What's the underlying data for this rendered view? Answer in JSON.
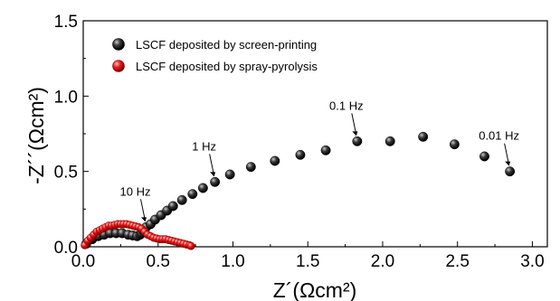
{
  "chart_data": {
    "type": "scatter",
    "xlabel": "Z´(Ωcm²)",
    "ylabel": "-Z´´(Ωcm²)",
    "xlim": [
      0,
      3.1
    ],
    "ylim": [
      0,
      1.5
    ],
    "x_ticks": [
      "0.0",
      "0.5",
      "1.0",
      "1.5",
      "2.0",
      "2.5",
      "3.0"
    ],
    "y_ticks": [
      "0.0",
      "0.5",
      "1.0",
      "1.5"
    ],
    "legend_position": "top-left",
    "grid": false,
    "series": [
      {
        "name": "LSCF deposited by screen-printing",
        "color": "#1a1a1a",
        "marker": "sphere-large",
        "points": [
          [
            0.02,
            0.02
          ],
          [
            0.06,
            0.05
          ],
          [
            0.1,
            0.07
          ],
          [
            0.14,
            0.08
          ],
          [
            0.18,
            0.09
          ],
          [
            0.22,
            0.09
          ],
          [
            0.26,
            0.09
          ],
          [
            0.3,
            0.08
          ],
          [
            0.33,
            0.075
          ],
          [
            0.36,
            0.07
          ],
          [
            0.38,
            0.08
          ],
          [
            0.39,
            0.09
          ],
          [
            0.4,
            0.11
          ],
          [
            0.42,
            0.13
          ],
          [
            0.45,
            0.15
          ],
          [
            0.48,
            0.18
          ],
          [
            0.52,
            0.21
          ],
          [
            0.56,
            0.24
          ],
          [
            0.6,
            0.27
          ],
          [
            0.66,
            0.31
          ],
          [
            0.73,
            0.35
          ],
          [
            0.8,
            0.39
          ],
          [
            0.88,
            0.43
          ],
          [
            0.98,
            0.48
          ],
          [
            1.12,
            0.53
          ],
          [
            1.28,
            0.57
          ],
          [
            1.45,
            0.61
          ],
          [
            1.62,
            0.64
          ],
          [
            1.83,
            0.7
          ],
          [
            2.05,
            0.7
          ],
          [
            2.27,
            0.73
          ],
          [
            2.48,
            0.68
          ],
          [
            2.68,
            0.6
          ],
          [
            2.85,
            0.5
          ]
        ]
      },
      {
        "name": "LSCF deposited by spray-pyrolysis",
        "color": "#e8141b",
        "marker": "sphere-small",
        "points": [
          [
            0.01,
            0.01
          ],
          [
            0.03,
            0.04
          ],
          [
            0.05,
            0.06
          ],
          [
            0.07,
            0.08
          ],
          [
            0.09,
            0.1
          ],
          [
            0.11,
            0.11
          ],
          [
            0.13,
            0.12
          ],
          [
            0.15,
            0.13
          ],
          [
            0.17,
            0.14
          ],
          [
            0.19,
            0.14
          ],
          [
            0.21,
            0.145
          ],
          [
            0.23,
            0.15
          ],
          [
            0.25,
            0.15
          ],
          [
            0.27,
            0.15
          ],
          [
            0.29,
            0.15
          ],
          [
            0.31,
            0.145
          ],
          [
            0.33,
            0.14
          ],
          [
            0.35,
            0.135
          ],
          [
            0.37,
            0.13
          ],
          [
            0.39,
            0.12
          ],
          [
            0.41,
            0.1
          ],
          [
            0.43,
            0.08
          ],
          [
            0.45,
            0.07
          ],
          [
            0.47,
            0.06
          ],
          [
            0.49,
            0.055
          ],
          [
            0.51,
            0.05
          ],
          [
            0.53,
            0.05
          ],
          [
            0.55,
            0.05
          ],
          [
            0.57,
            0.045
          ],
          [
            0.59,
            0.04
          ],
          [
            0.61,
            0.035
          ],
          [
            0.63,
            0.03
          ],
          [
            0.65,
            0.025
          ],
          [
            0.67,
            0.02
          ],
          [
            0.69,
            0.015
          ],
          [
            0.71,
            0.01
          ],
          [
            0.72,
            0.005
          ]
        ]
      }
    ],
    "annotations": [
      {
        "label": "10 Hz",
        "x": 0.42,
        "y": 0.13
      },
      {
        "label": "1 Hz",
        "x": 0.88,
        "y": 0.43
      },
      {
        "label": "0.1 Hz",
        "x": 1.83,
        "y": 0.7
      },
      {
        "label": "0.01 Hz",
        "x": 2.85,
        "y": 0.5
      }
    ]
  }
}
